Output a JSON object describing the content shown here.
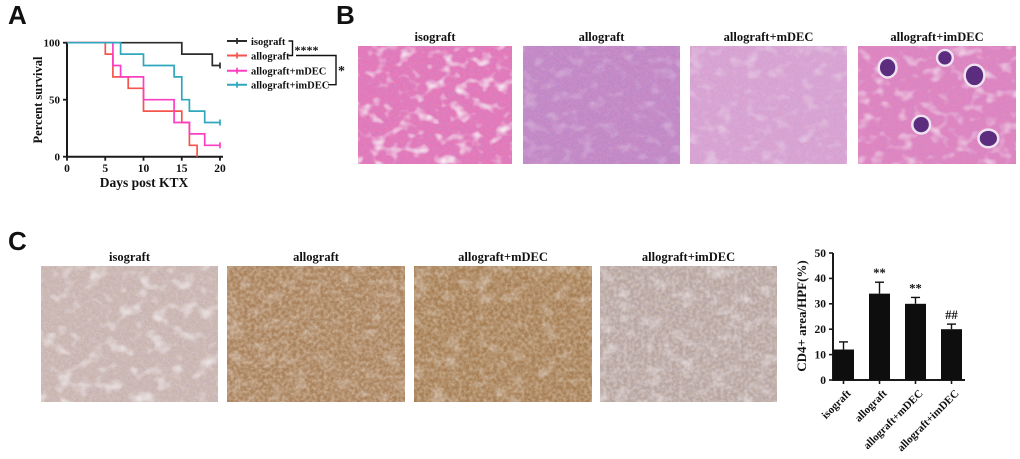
{
  "panels": {
    "a": {
      "label": "A"
    },
    "b": {
      "label": "B"
    },
    "c": {
      "label": "C"
    }
  },
  "chart_data": [
    {
      "type": "line",
      "subtype": "kaplan-meier-survival",
      "title": "",
      "xlabel": "Days post KTX",
      "ylabel": "Percent survival",
      "xlim": [
        0,
        20
      ],
      "ylim": [
        0,
        100
      ],
      "xticks": [
        0,
        5,
        10,
        15,
        20
      ],
      "yticks": [
        0,
        50,
        100
      ],
      "legend_position": "right",
      "grid": false,
      "series": [
        {
          "name": "isograft",
          "color": "#2b2b2b",
          "censor_tick_at_end": true,
          "points": [
            [
              0,
              100
            ],
            [
              15,
              100
            ],
            [
              15,
              90
            ],
            [
              19,
              90
            ],
            [
              19,
              80
            ],
            [
              20,
              80
            ]
          ]
        },
        {
          "name": "allograft",
          "color": "#f4564d",
          "censor_tick_at_end": false,
          "points": [
            [
              0,
              100
            ],
            [
              5,
              100
            ],
            [
              5,
              90
            ],
            [
              6,
              90
            ],
            [
              6,
              70
            ],
            [
              8,
              70
            ],
            [
              8,
              60
            ],
            [
              10,
              60
            ],
            [
              10,
              40
            ],
            [
              15,
              40
            ],
            [
              15,
              30
            ],
            [
              16,
              30
            ],
            [
              16,
              10
            ],
            [
              17,
              10
            ],
            [
              17,
              0
            ]
          ]
        },
        {
          "name": "allograft+mDEC",
          "color": "#fb3fc1",
          "censor_tick_at_end": true,
          "points": [
            [
              0,
              100
            ],
            [
              6,
              100
            ],
            [
              6,
              80
            ],
            [
              7,
              80
            ],
            [
              7,
              70
            ],
            [
              10,
              70
            ],
            [
              10,
              50
            ],
            [
              14,
              50
            ],
            [
              14,
              30
            ],
            [
              16,
              30
            ],
            [
              16,
              20
            ],
            [
              18,
              20
            ],
            [
              18,
              10
            ],
            [
              20,
              10
            ]
          ]
        },
        {
          "name": "allograft+imDEC",
          "color": "#2fa7bd",
          "censor_tick_at_end": true,
          "points": [
            [
              0,
              100
            ],
            [
              7,
              100
            ],
            [
              7,
              90
            ],
            [
              10,
              90
            ],
            [
              10,
              80
            ],
            [
              14,
              80
            ],
            [
              14,
              70
            ],
            [
              15,
              70
            ],
            [
              15,
              50
            ],
            [
              16,
              50
            ],
            [
              16,
              40
            ],
            [
              18,
              40
            ],
            [
              18,
              30
            ],
            [
              20,
              30
            ]
          ]
        }
      ],
      "annotations": [
        {
          "label": "****",
          "between": [
            "isograft",
            "allograft"
          ]
        },
        {
          "label": "*",
          "between": [
            "allograft",
            "allograft+imDEC"
          ]
        }
      ]
    },
    {
      "type": "bar",
      "categories": [
        "isograft",
        "allograft",
        "allograft+mDEC",
        "allograft+imDEC"
      ],
      "values": [
        12,
        34,
        30,
        20
      ],
      "errors": [
        3,
        4.5,
        2.5,
        2
      ],
      "sig_labels": [
        "",
        "**",
        "**",
        "##"
      ],
      "title": "",
      "xlabel": "",
      "ylabel": "CD4+ area/HPF(%)",
      "ylim": [
        0,
        50
      ],
      "yticks": [
        0,
        10,
        20,
        30,
        40,
        50
      ],
      "grid": false,
      "bar_color": "#0e0e0e"
    }
  ],
  "histology": {
    "b": [
      {
        "label": "isograft",
        "stain": "H&E",
        "base": "#e87ab5",
        "mottle": "#c2267f",
        "dots": "#8b4ba8",
        "white": 0.95
      },
      {
        "label": "allograft",
        "stain": "H&E",
        "base": "#c78ac4",
        "mottle": "#a44b9e",
        "dots": "#5c3a96",
        "white": 0.28
      },
      {
        "label": "allograft+mDEC",
        "stain": "H&E",
        "base": "#d9a3cf",
        "mottle": "#c06ab4",
        "dots": "#8f57ae",
        "white": 0.35
      },
      {
        "label": "allograft+imDEC",
        "stain": "H&E",
        "base": "#e288bd",
        "mottle": "#c0368f",
        "dots": "#8a3f9e",
        "white": 0.6,
        "blobs": "#5c2d7e"
      }
    ],
    "c": [
      {
        "label": "isograft",
        "stain": "IHC CD4",
        "base": "#ccb7af",
        "mottle": "#b59a94",
        "dots": "#80687e",
        "white": 0.7
      },
      {
        "label": "allograft",
        "stain": "IHC CD4",
        "base": "#a87f59",
        "mottle": "#c0a181",
        "dots": "#7a5130",
        "white": 0.3
      },
      {
        "label": "allograft+mDEC",
        "stain": "IHC CD4",
        "base": "#a67c51",
        "mottle": "#bb9c7a",
        "dots": "#724e2d",
        "white": 0.35
      },
      {
        "label": "allograft+imDEC",
        "stain": "IHC CD4",
        "base": "#b7a49b",
        "mottle": "#c9b8ad",
        "dots": "#857089",
        "white": 0.45
      }
    ]
  }
}
